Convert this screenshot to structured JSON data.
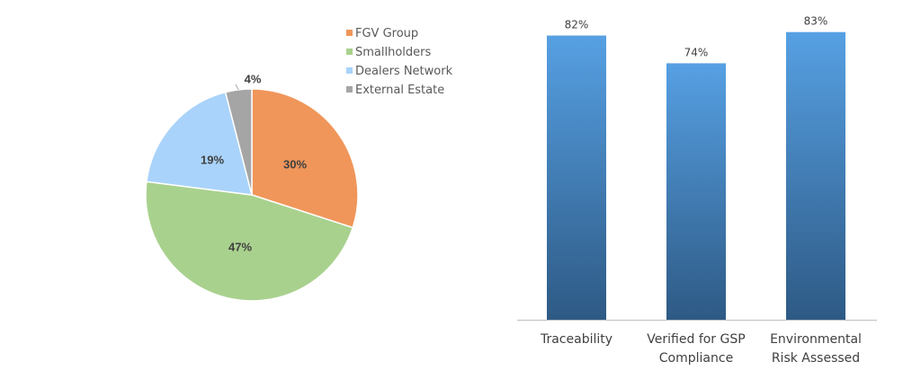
{
  "chart_data": [
    {
      "type": "pie",
      "title": "",
      "legend_position": "top-right",
      "slices": [
        {
          "label": "FGV Group",
          "value": 30,
          "display": "30%",
          "color": "#F0965A"
        },
        {
          "label": "Smallholders",
          "value": 47,
          "display": "47%",
          "color": "#A9D18E"
        },
        {
          "label": "Dealers Network",
          "value": 19,
          "display": "19%",
          "color": "#A9D3FA"
        },
        {
          "label": "External Estate",
          "value": 4,
          "display": "4%",
          "color": "#A5A5A5"
        }
      ]
    },
    {
      "type": "bar",
      "title": "",
      "xlabel": "",
      "ylabel": "",
      "ylim": [
        0,
        85
      ],
      "grid": false,
      "categories": [
        [
          "Traceability"
        ],
        [
          "Verified for GSP",
          "Compliance"
        ],
        [
          "Environmental",
          "Risk Assessed"
        ]
      ],
      "values": [
        82,
        74,
        83
      ],
      "value_labels": [
        "82%",
        "74%",
        "83%"
      ],
      "color_top": "#56A0E3",
      "color_bottom": "#2E5A85"
    }
  ]
}
